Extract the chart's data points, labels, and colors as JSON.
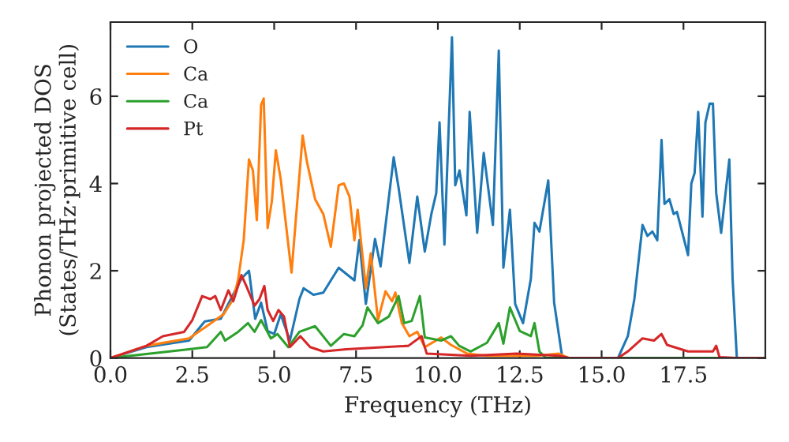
{
  "chart_data": {
    "type": "line",
    "xlabel": "Frequency (THz)",
    "ylabel": "Phonon projected DOS\n(States/THz·primitive cell)",
    "xlim": [
      0,
      20
    ],
    "ylim": [
      0,
      7.7
    ],
    "xticks": [
      {
        "value": 0,
        "label": "0.0"
      },
      {
        "value": 2.5,
        "label": "2.5"
      },
      {
        "value": 5,
        "label": "5.0"
      },
      {
        "value": 7.5,
        "label": "7.5"
      },
      {
        "value": 10,
        "label": "10.0"
      },
      {
        "value": 12.5,
        "label": "12.5"
      },
      {
        "value": 15,
        "label": "15.0"
      },
      {
        "value": 17.5,
        "label": "17.5"
      }
    ],
    "yticks": [
      0,
      2,
      4,
      6
    ],
    "grid": false,
    "legend": "top left",
    "marker": "none",
    "line_style": "solid",
    "series": [
      {
        "name": "O",
        "color": "#1f77b4",
        "x": [
          0,
          1.1,
          2.4,
          2.88,
          3.37,
          3.6,
          4.0,
          4.23,
          4.42,
          4.6,
          4.8,
          5.0,
          5.2,
          5.48,
          5.77,
          5.9,
          6.2,
          6.5,
          6.97,
          7.45,
          7.6,
          7.8,
          8.08,
          8.25,
          8.65,
          8.8,
          9.13,
          9.37,
          9.6,
          9.8,
          9.95,
          10.05,
          10.2,
          10.43,
          10.53,
          10.66,
          10.87,
          10.97,
          11.2,
          11.4,
          11.68,
          11.86,
          12.0,
          12.2,
          12.36,
          12.6,
          12.84,
          12.95,
          13.1,
          13.37,
          13.55,
          13.8,
          15.5,
          15.8,
          16.0,
          16.25,
          16.4,
          16.55,
          16.7,
          16.83,
          16.92,
          17.07,
          17.2,
          17.3,
          17.64,
          17.74,
          17.84,
          17.95,
          18.08,
          18.17,
          18.3,
          18.4,
          18.5,
          18.65,
          18.9,
          19.0,
          19.13,
          20
        ],
        "values": [
          0,
          0.25,
          0.4,
          0.84,
          0.9,
          1.24,
          1.82,
          2.0,
          0.9,
          1.27,
          0.62,
          0.55,
          1.0,
          0.4,
          1.35,
          1.6,
          1.45,
          1.5,
          2.07,
          1.78,
          2.7,
          1.24,
          2.73,
          2.1,
          4.6,
          3.9,
          2.18,
          3.7,
          2.44,
          3.3,
          3.78,
          5.4,
          2.6,
          7.35,
          3.96,
          4.3,
          3.27,
          5.64,
          2.87,
          4.7,
          3.05,
          7.05,
          2.07,
          3.4,
          1.24,
          0.8,
          1.82,
          3.1,
          2.9,
          4.07,
          1.27,
          0,
          0,
          0.5,
          1.35,
          3.05,
          2.8,
          2.9,
          2.7,
          5.0,
          3.53,
          3.64,
          3.3,
          3.35,
          2.36,
          4.0,
          4.24,
          5.64,
          3.24,
          5.4,
          5.83,
          5.83,
          3.78,
          2.87,
          4.55,
          1.82,
          0,
          0
        ]
      },
      {
        "name": "Ca",
        "color": "#ff7f0e",
        "x": [
          0,
          1.1,
          2.4,
          2.88,
          3.45,
          3.75,
          3.9,
          4.07,
          4.23,
          4.35,
          4.47,
          4.6,
          4.68,
          4.8,
          4.93,
          5.05,
          5.2,
          5.53,
          5.87,
          6.0,
          6.25,
          6.5,
          6.73,
          6.97,
          7.13,
          7.3,
          7.45,
          7.55,
          7.8,
          7.95,
          8.17,
          8.4,
          8.6,
          8.7,
          8.9,
          9.13,
          9.37,
          9.6,
          10.1,
          10.4,
          10.9,
          11.5,
          13.0,
          13.7,
          14.0,
          20
        ],
        "values": [
          0,
          0.28,
          0.45,
          0.7,
          1.0,
          1.35,
          1.8,
          2.7,
          4.55,
          4.3,
          3.16,
          5.8,
          5.95,
          2.98,
          3.6,
          4.76,
          4.1,
          1.96,
          5.1,
          4.5,
          3.64,
          3.3,
          2.55,
          3.96,
          4.0,
          3.7,
          2.7,
          3.4,
          1.6,
          2.4,
          0.87,
          1.53,
          1.3,
          1.5,
          0.8,
          0.5,
          0.6,
          0.25,
          0.47,
          0.3,
          0.1,
          0.05,
          0.05,
          0.1,
          0,
          0
        ]
      },
      {
        "name": "Ca",
        "color": "#2ca02c",
        "x": [
          0,
          2.4,
          2.95,
          3.37,
          3.5,
          3.9,
          4.2,
          4.4,
          4.6,
          4.9,
          5.1,
          5.43,
          5.77,
          6.25,
          6.73,
          7.13,
          7.45,
          7.7,
          7.85,
          8.17,
          8.5,
          8.8,
          8.97,
          9.2,
          9.45,
          9.6,
          10.1,
          10.4,
          10.65,
          11.0,
          11.5,
          11.86,
          12.0,
          12.2,
          12.5,
          12.84,
          12.95,
          13.1,
          13.3,
          20
        ],
        "values": [
          0,
          0.2,
          0.25,
          0.6,
          0.4,
          0.6,
          0.8,
          0.6,
          0.87,
          0.45,
          0.55,
          0.25,
          0.6,
          0.73,
          0.28,
          0.55,
          0.5,
          0.75,
          1.16,
          0.8,
          0.95,
          1.42,
          0.8,
          0.85,
          1.42,
          0.47,
          0.4,
          0.5,
          0.28,
          0.15,
          0.35,
          0.8,
          0.33,
          1.16,
          0.62,
          0.5,
          0.8,
          0.15,
          0,
          0
        ]
      },
      {
        "name": "Pt",
        "color": "#d62728",
        "x": [
          0,
          1.1,
          1.6,
          2.25,
          2.5,
          2.8,
          3.05,
          3.2,
          3.37,
          3.6,
          3.75,
          4.0,
          4.15,
          4.4,
          4.55,
          4.7,
          4.8,
          4.97,
          5.13,
          5.3,
          5.48,
          5.8,
          6.1,
          6.5,
          7.2,
          9.1,
          9.5,
          9.66,
          11.0,
          12.4,
          13.7,
          14.0,
          15.5,
          15.8,
          16.25,
          16.6,
          16.83,
          17.0,
          17.64,
          18.4,
          18.5,
          18.6,
          19.1,
          20
        ],
        "values": [
          0,
          0.28,
          0.5,
          0.6,
          0.87,
          1.42,
          1.35,
          1.42,
          1.1,
          1.55,
          1.3,
          1.9,
          1.65,
          1.2,
          1.35,
          1.65,
          1.1,
          0.85,
          1.1,
          0.95,
          0.25,
          0.5,
          0.25,
          0.15,
          0.2,
          0.28,
          0.5,
          0.1,
          0.05,
          0.1,
          0.05,
          0,
          0,
          0.15,
          0.45,
          0.4,
          0.55,
          0.3,
          0.15,
          0.15,
          0.28,
          0.02,
          0,
          0
        ]
      }
    ]
  }
}
